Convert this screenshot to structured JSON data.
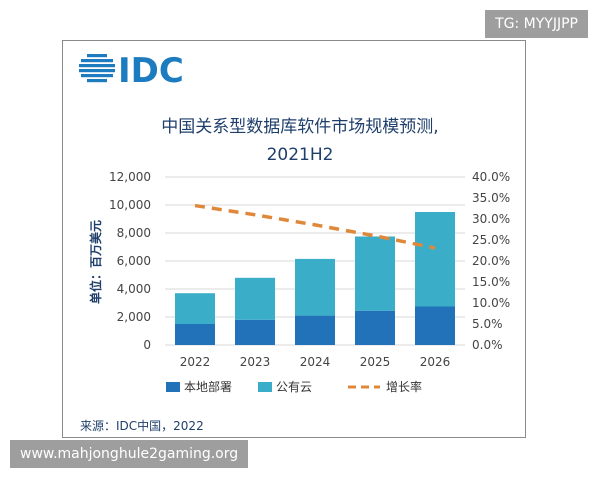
{
  "logo": "IDC",
  "watermark_top": "TG: MYYJJPP",
  "watermark_bottom": "www.mahjonghule2gaming.org",
  "source": "来源：IDC中国，2022",
  "chart_data": {
    "type": "bar",
    "title_line1": "中国关系型数据库软件市场规模预测,",
    "title_line2": "2021H2",
    "ylabel": "单位：百万美元",
    "categories": [
      "2022",
      "2023",
      "2024",
      "2025",
      "2026"
    ],
    "stacked": true,
    "series": [
      {
        "name": "本地部署",
        "values": [
          1500,
          1800,
          2100,
          2450,
          2750
        ],
        "color": "#2172b8"
      },
      {
        "name": "公有云",
        "values": [
          2200,
          3000,
          4050,
          5300,
          6750
        ],
        "color": "#3aaec8"
      },
      {
        "name": "增长率",
        "type": "line",
        "axis": "right",
        "style": "dashed",
        "values": [
          33.2,
          31.0,
          28.6,
          26.0,
          23.1
        ],
        "color": "#e0883a"
      }
    ],
    "ylim": [
      0,
      12000
    ],
    "yticks": [
      "0",
      "2,000",
      "4,000",
      "6,000",
      "8,000",
      "10,000",
      "12,000"
    ],
    "y2lim": [
      0,
      40
    ],
    "y2ticks": [
      "0.0%",
      "5.0%",
      "10.0%",
      "15.0%",
      "20.0%",
      "25.0%",
      "30.0%",
      "35.0%",
      "40.0%"
    ],
    "grid": true,
    "legend_position": "bottom"
  }
}
